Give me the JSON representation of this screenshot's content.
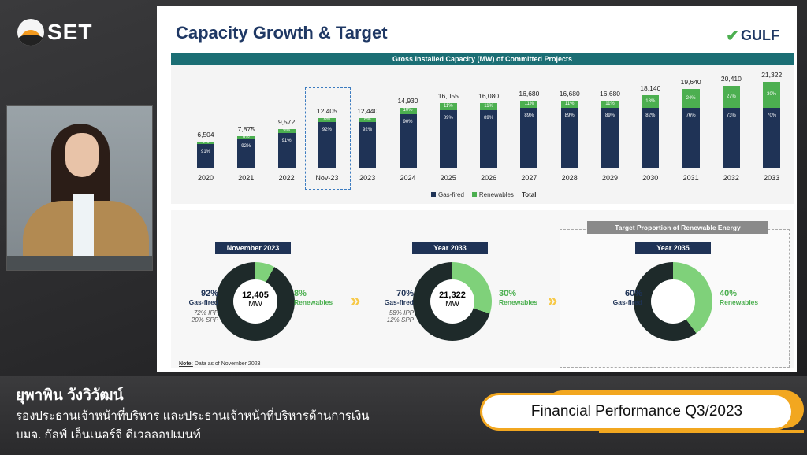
{
  "broadcast": {
    "channel_logo": "SET",
    "presenter_name": "ยุพาพิน วังวิวัฒน์",
    "presenter_role": "รองประธานเจ้าหน้าที่บริหาร และประธานเจ้าหน้าที่บริหารด้านการเงิน",
    "company": "บมจ. กัลฟ์ เอ็นเนอร์จี ดีเวลลอปเมนท์",
    "program_title": "Financial Performance Q3/2023"
  },
  "slide": {
    "title": "Capacity Growth & Target",
    "brand": "GULF",
    "chart_heading": "Gross Installed Capacity (MW) of Committed Projects",
    "legend": [
      "Gas-fired",
      "Renewables",
      "Total"
    ],
    "colors": {
      "gas": "#1f3356",
      "renewables": "#4caf50",
      "header": "#1b6e74"
    },
    "note": "Data as of November 2023",
    "note_label": "Note:",
    "pies": [
      {
        "tag": "November 2023",
        "total": "12,405",
        "unit": "MW",
        "gas_pct": "92%",
        "gas_label": "Gas-fired",
        "ren_pct": "8%",
        "ren_label": "Renewables",
        "sub1": "72% IPP",
        "sub2": "20% SPP",
        "renewables_fraction": 0.08
      },
      {
        "tag": "Year 2033",
        "total": "21,322",
        "unit": "MW",
        "gas_pct": "70%",
        "gas_label": "Gas-fired",
        "ren_pct": "30%",
        "ren_label": "Renewables",
        "sub1": "58% IPP",
        "sub2": "12% SPP",
        "renewables_fraction": 0.3
      },
      {
        "tag": "Year 2035",
        "total": "",
        "unit": "",
        "gas_pct": "60%",
        "gas_label": "Gas-fired",
        "ren_pct": "40%",
        "ren_label": "Renewables",
        "sub1": "",
        "sub2": "",
        "renewables_fraction": 0.4
      }
    ],
    "target_heading": "Target Proportion of Renewable Energy"
  },
  "chart_data": {
    "type": "bar",
    "title": "Gross Installed Capacity (MW) of Committed Projects",
    "categories": [
      "2020",
      "2021",
      "2022",
      "Nov-23",
      "2023",
      "2024",
      "2025",
      "2026",
      "2027",
      "2028",
      "2029",
      "2030",
      "2031",
      "2032",
      "2033"
    ],
    "totals": [
      6504,
      7875,
      9572,
      12405,
      12440,
      14930,
      16055,
      16080,
      16680,
      16680,
      16680,
      18140,
      19640,
      20410,
      21322
    ],
    "total_labels": [
      "6,504",
      "7,875",
      "9,572",
      "12,405",
      "12,440",
      "14,930",
      "16,055",
      "16,080",
      "16,680",
      "16,680",
      "16,680",
      "18,140",
      "19,640",
      "20,410",
      "21,322"
    ],
    "series": [
      {
        "name": "Gas-fired",
        "values_pct": [
          91,
          92,
          91,
          92,
          92,
          90,
          89,
          89,
          89,
          89,
          89,
          82,
          76,
          73,
          70
        ]
      },
      {
        "name": "Renewables",
        "values_pct": [
          9,
          8,
          9,
          8,
          8,
          10,
          11,
          11,
          11,
          11,
          11,
          18,
          24,
          27,
          30
        ]
      }
    ],
    "highlight_category": "Nov-23",
    "legend_position": "bottom"
  }
}
